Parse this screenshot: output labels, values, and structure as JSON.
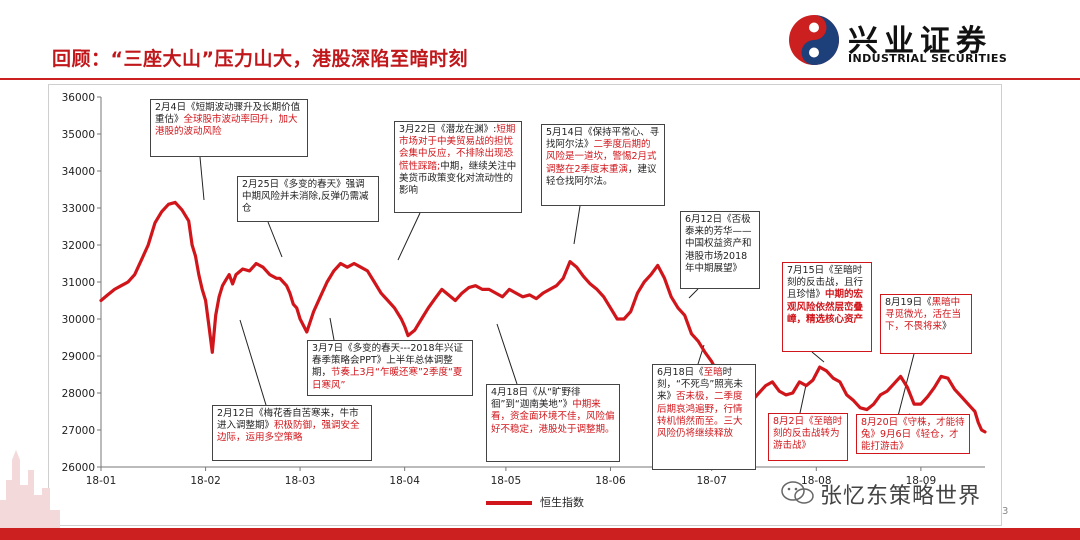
{
  "header": {
    "title": "回顾：“三座大山”压力山大，港股深陷至暗时刻",
    "logo_cn": "兴业证券",
    "logo_en": "INDUSTRIAL SECURITIES"
  },
  "footer": {
    "watermark": "张忆东策略世界",
    "page_number": "3"
  },
  "colors": {
    "brand_red": "#cc1f1f",
    "series_red": "#d0161b",
    "logo_blue": "#1d3f7a"
  },
  "annotations": [
    {
      "id": "a1",
      "parts": [
        {
          "t": "2月4日《短期波动骤升及长期价值重估》",
          "s": "n"
        },
        {
          "t": "全球股市波动率回升，加大港股的波动风险",
          "s": "r"
        }
      ]
    },
    {
      "id": "a2",
      "parts": [
        {
          "t": "2月25日《多变的春天》强调中期风险并未消除,反弹仍需减仓",
          "s": "n"
        }
      ]
    },
    {
      "id": "a3",
      "parts": [
        {
          "t": "3月22日《潜龙在渊》:",
          "s": "n"
        },
        {
          "t": "短期市场对于中美贸易战的担忧会集中反应，不排除出现恐慌性踩踏;",
          "s": "r"
        },
        {
          "t": "中期，继续关注中美货币政策变化对流动性的影响",
          "s": "n"
        }
      ]
    },
    {
      "id": "a4",
      "parts": [
        {
          "t": "5月14日《保持平常心、寻找阿尔法》",
          "s": "n"
        },
        {
          "t": "二季度后期的风险是一道坎，警惕2月式调整在2季度末重演",
          "s": "r"
        },
        {
          "t": "，建议轻仓找阿尔法。",
          "s": "n"
        }
      ]
    },
    {
      "id": "a5",
      "parts": [
        {
          "t": "6月12日《否极泰来的芳华——中国权益资产和港股市场2018年中期展望》",
          "s": "n"
        }
      ]
    },
    {
      "id": "a6",
      "parts": [
        {
          "t": "7月15日《至暗时刻的反击战，且行且珍惜》",
          "s": "n"
        },
        {
          "t": "中期的宏观风险依然层峦叠嶂，精选核心资产",
          "s": "rb"
        }
      ]
    },
    {
      "id": "a7",
      "parts": [
        {
          "t": "8月19日《",
          "s": "n"
        },
        {
          "t": "黑暗中寻觅微光，活在当下，不畏将来",
          "s": "r"
        },
        {
          "t": "》",
          "s": "n"
        }
      ]
    },
    {
      "id": "a8",
      "parts": [
        {
          "t": "3月7日《多变的春天---2018年兴证春季策略会PPT》上半年总体调整期，",
          "s": "n"
        },
        {
          "t": "节奏上3月“乍暖还寒”2季度“夏日寒风”",
          "s": "r"
        }
      ]
    },
    {
      "id": "a9",
      "parts": [
        {
          "t": "2月12日《梅花香自苦寒来，牛市进入调整期》",
          "s": "n"
        },
        {
          "t": "积极防御，强调安全边际，运用多空策略",
          "s": "r"
        }
      ]
    },
    {
      "id": "a10",
      "parts": [
        {
          "t": "4月18日《从“旷野徘徊”到“迦南美地”》",
          "s": "n"
        },
        {
          "t": "中期来看，资金面环境不佳，风险偏好不稳定，港股处于调整期。",
          "s": "r"
        }
      ]
    },
    {
      "id": "a11",
      "parts": [
        {
          "t": "6月18日《",
          "s": "n"
        },
        {
          "t": "至暗",
          "s": "r"
        },
        {
          "t": "时刻，“不死鸟”照亮未来》",
          "s": "n"
        },
        {
          "t": "否未极，二季度后期哀鸿遍野，行情转机悄然而至。三大风险仍将继续释放",
          "s": "r"
        }
      ]
    },
    {
      "id": "a12",
      "parts": [
        {
          "t": "8月2日《至暗时刻的反击战转为游击战》",
          "s": "r"
        }
      ]
    },
    {
      "id": "a13",
      "parts": [
        {
          "t": "8月20日《守株，才能待兔》",
          "s": "r"
        },
        {
          "t": "9月6日《轻仓，才能打游击》",
          "s": "r"
        }
      ]
    }
  ],
  "chart_data": {
    "type": "line",
    "title": "",
    "xlabel": "",
    "ylabel": "",
    "ylim": [
      26000,
      36000
    ],
    "yticks": [
      "26000",
      "27000",
      "28000",
      "29000",
      "30000",
      "31000",
      "32000",
      "33000",
      "34000",
      "35000",
      "36000"
    ],
    "xticks": [
      "18-01",
      "18-02",
      "18-03",
      "18-04",
      "18-05",
      "18-06",
      "18-07",
      "18-08",
      "18-09"
    ],
    "xtick_values": [
      0,
      31,
      59,
      90,
      120,
      151,
      181,
      212,
      243
    ],
    "legend_position": "bottom-center",
    "grid": false,
    "series": [
      {
        "name": "恒生指数",
        "color": "#d0161b",
        "x": [
          0,
          2,
          4,
          6,
          8,
          10,
          12,
          14,
          16,
          18,
          20,
          22,
          24,
          26,
          27,
          28,
          29,
          30,
          31,
          32,
          33,
          34,
          35,
          36,
          37,
          38,
          39,
          40,
          42,
          44,
          46,
          48,
          50,
          52,
          53,
          54,
          55,
          56,
          57,
          58,
          59,
          61,
          63,
          65,
          67,
          69,
          71,
          73,
          75,
          77,
          79,
          81,
          83,
          85,
          87,
          89,
          90,
          91,
          93,
          95,
          97,
          99,
          101,
          103,
          105,
          107,
          109,
          111,
          113,
          115,
          117,
          119,
          121,
          123,
          125,
          127,
          129,
          131,
          133,
          135,
          137,
          139,
          141,
          143,
          145,
          147,
          149,
          151,
          153,
          155,
          157,
          159,
          161,
          163,
          165,
          167,
          169,
          171,
          173,
          175,
          177,
          179,
          181,
          183,
          185,
          187,
          189,
          191,
          193,
          195,
          197,
          199,
          201,
          203,
          205,
          207,
          209,
          211,
          213,
          215,
          217,
          219,
          221,
          223,
          225,
          227,
          229,
          231,
          233,
          235,
          237,
          239,
          241,
          243,
          245,
          247,
          249,
          251,
          253,
          255,
          257,
          258,
          259,
          260,
          261,
          262
        ],
        "y": [
          30500,
          30650,
          30800,
          30900,
          31000,
          31200,
          31600,
          32000,
          32600,
          32900,
          33100,
          33150,
          32950,
          32650,
          32000,
          31700,
          31200,
          30800,
          30500,
          29800,
          29100,
          30100,
          30600,
          30900,
          31050,
          31200,
          30950,
          31200,
          31350,
          31300,
          31500,
          31400,
          31200,
          31100,
          31100,
          31000,
          30900,
          30700,
          30400,
          30300,
          30000,
          29650,
          30200,
          30600,
          31000,
          31300,
          31500,
          31400,
          31500,
          31400,
          31300,
          31000,
          30700,
          30500,
          30300,
          30000,
          29800,
          29550,
          29700,
          30000,
          30300,
          30550,
          30800,
          30650,
          30500,
          30700,
          30850,
          30900,
          30800,
          30800,
          30700,
          30600,
          30800,
          30700,
          30600,
          30650,
          30550,
          30700,
          30800,
          30900,
          31100,
          31550,
          31400,
          31150,
          30950,
          30800,
          30600,
          30300,
          30000,
          30000,
          30200,
          30700,
          31000,
          31200,
          31450,
          31100,
          30600,
          30300,
          30100,
          29600,
          29400,
          29100,
          28850,
          28500,
          28150,
          28250,
          28100,
          28000,
          27800,
          28000,
          28200,
          28300,
          28050,
          27950,
          28000,
          28300,
          28200,
          28350,
          28700,
          28600,
          28400,
          28300,
          27950,
          27800,
          27600,
          27550,
          27700,
          27950,
          28050,
          28250,
          28450,
          28150,
          27700,
          27700,
          27900,
          28150,
          28450,
          28400,
          28100,
          27900,
          27700,
          27600,
          27500,
          27200,
          27000,
          26950
        ]
      }
    ]
  }
}
